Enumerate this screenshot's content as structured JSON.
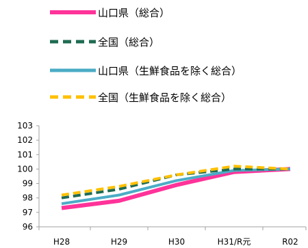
{
  "chart_data": {
    "type": "line",
    "categories": [
      "H28",
      "H29",
      "H30",
      "H31/R元",
      "R02"
    ],
    "series": [
      {
        "name": "山口県（総合）",
        "values": [
          97.3,
          97.8,
          98.9,
          99.8,
          100.0
        ],
        "color": "#ff3399",
        "dash": "solid"
      },
      {
        "name": "全国（総合）",
        "values": [
          98.0,
          98.6,
          99.6,
          100.0,
          100.0
        ],
        "color": "#1f6b52",
        "dash": "dashed"
      },
      {
        "name": "山口県（生鮮食品を除く総合）",
        "values": [
          97.6,
          98.2,
          99.2,
          99.9,
          100.0
        ],
        "color": "#4bacc6",
        "dash": "solid"
      },
      {
        "name": "全国（生鮮食品を除く総合）",
        "values": [
          98.2,
          98.8,
          99.6,
          100.2,
          100.0
        ],
        "color": "#ffc000",
        "dash": "dashed"
      }
    ],
    "ylim": [
      96,
      103
    ],
    "yticks": [
      96,
      97,
      98,
      99,
      100,
      101,
      102,
      103
    ],
    "grid": false,
    "legend": "top"
  }
}
